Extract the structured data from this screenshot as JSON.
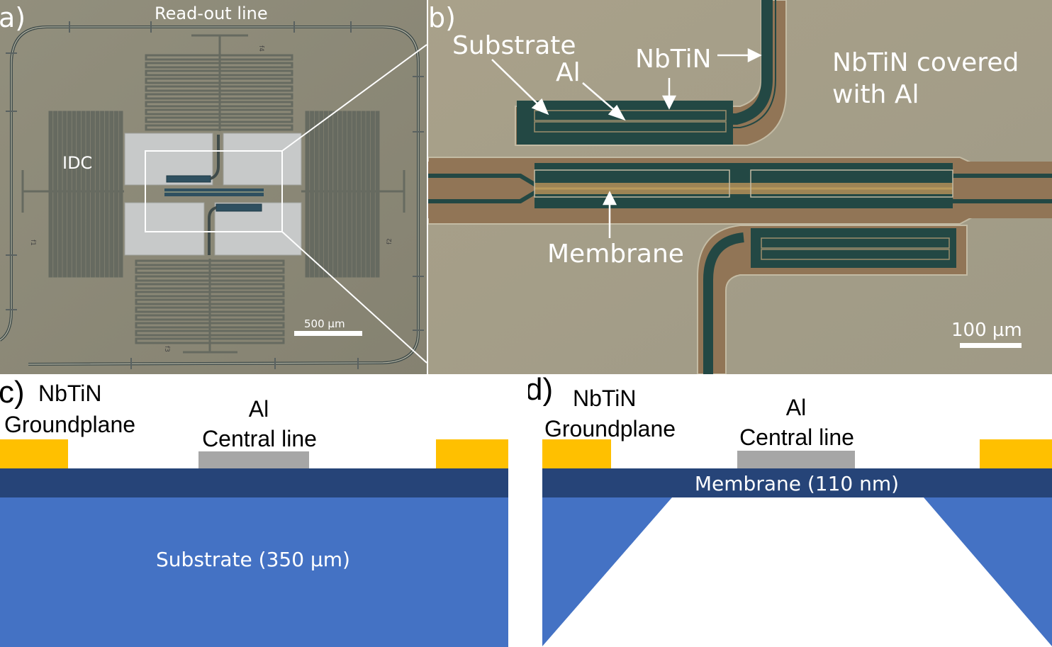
{
  "panels": {
    "a": {
      "letter": "a)",
      "readout_label": "Read-out line",
      "idc_label": "IDC",
      "scale_label": "500 µm",
      "res_labels": [
        "f4",
        "f1",
        "f2",
        "f3"
      ]
    },
    "b": {
      "letter": "b)",
      "substrate_label": "Substrate",
      "al_label": "Al",
      "nbtin_label": "NbTiN",
      "covered_line1": "NbTiN covered",
      "covered_line2": "with Al",
      "membrane_label": "Membrane",
      "scale_label": "100 µm"
    },
    "c": {
      "letter": "c)",
      "nbtin_line1": "NbTiN",
      "nbtin_line2": "Groundplane",
      "al_line1": "Al",
      "al_line2": "Central line",
      "substrate_label": "Substrate (350 µm)"
    },
    "d": {
      "letter": "d)",
      "nbtin_line1": "NbTiN",
      "nbtin_line2": "Groundplane",
      "al_line1": "Al",
      "al_line2": "Central line",
      "membrane_label": "Membrane (110 nm)"
    }
  },
  "colors": {
    "chip_bg": "#8d8a78",
    "micro_bg": "#a59e89",
    "nbtin_gold": "#ffc000",
    "al_gray": "#a6a6a6",
    "membrane_navy": "#264478",
    "substrate_blue": "#4472c4"
  }
}
